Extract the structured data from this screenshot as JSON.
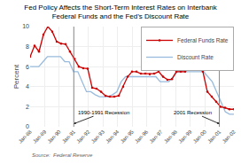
{
  "chart_data": {
    "type": "line",
    "title": "Fed Policy Affects the Short-Term Interest Rates on Interbank",
    "subtitle": "Federal Funds and the Fed’s Discount Rate",
    "ylabel": "Percent",
    "source": "Source:  Federal Reserve",
    "xlim": [
      0,
      14
    ],
    "xticks": [
      {
        "value": 0,
        "label": "Jan-88"
      },
      {
        "value": 1,
        "label": "Jan-89"
      },
      {
        "value": 2,
        "label": "Jan-90"
      },
      {
        "value": 3,
        "label": "Jan-91"
      },
      {
        "value": 4,
        "label": "Jan-92"
      },
      {
        "value": 5,
        "label": "Jan-93"
      },
      {
        "value": 6,
        "label": "Jan-94"
      },
      {
        "value": 7,
        "label": "Jan-95"
      },
      {
        "value": 8,
        "label": "Jan-96"
      },
      {
        "value": 9,
        "label": "Jan-97"
      },
      {
        "value": 10,
        "label": "Jan-98"
      },
      {
        "value": 11,
        "label": "Jan-99"
      },
      {
        "value": 12,
        "label": "Jan-00"
      },
      {
        "value": 13,
        "label": "Jan-01"
      },
      {
        "value": 14,
        "label": "Jan-02"
      }
    ],
    "ylim": [
      0,
      10
    ],
    "yticks": [
      0,
      2,
      4,
      6,
      8,
      10
    ],
    "grid": true,
    "legend": "upper right",
    "annotations": [
      {
        "text": "1990-1991 Recession",
        "x": 3.0
      },
      {
        "text": "2001 Recession",
        "x": 13.0
      }
    ],
    "series": [
      {
        "name": "Federal Funds Rate",
        "color": "#cc0000",
        "marker": "circle",
        "x": [
          0,
          0.3043,
          0.6087,
          0.913,
          1.2174,
          1.5217,
          1.8261,
          2.1304,
          2.4348,
          2.7391,
          3.0435,
          3.3478,
          3.6522,
          3.9565,
          4.2609,
          4.5652,
          4.8696,
          5.1739,
          5.4783,
          5.7826,
          6.087,
          6.3913,
          6.6957,
          7,
          7.3043,
          7.6087,
          7.913,
          8.2174,
          8.5217,
          8.8261,
          9.1304,
          9.4348,
          9.7391,
          10.0435,
          10.3478,
          10.6522,
          10.9565,
          11.2609,
          11.5652,
          11.8696,
          12.1739,
          12.4783,
          12.7826,
          13.087,
          13.3913,
          13.6957,
          14
        ],
        "values": [
          7.0,
          8.1,
          7.5,
          9.2,
          10.0,
          9.5,
          8.5,
          8.3,
          8.25,
          7.5,
          6.8,
          6.0,
          5.85,
          5.8,
          3.9,
          3.8,
          3.5,
          3.1,
          3.0,
          3.0,
          3.1,
          4.0,
          5.0,
          5.5,
          5.5,
          5.3,
          5.3,
          5.25,
          5.3,
          5.5,
          5.0,
          4.7,
          4.75,
          5.5,
          5.5,
          5.5,
          6.0,
          6.0,
          5.9,
          5.5,
          3.5,
          3.0,
          2.5,
          2.0,
          1.9,
          1.75,
          1.75
        ]
      },
      {
        "name": "Discount Rate",
        "color": "#99bbdd",
        "x": [
          0,
          0.2979,
          0.5957,
          0.8936,
          1.1915,
          1.4894,
          1.7872,
          2.0851,
          2.383,
          2.6809,
          2.9787,
          3.2766,
          3.5745,
          3.8723,
          4.1702,
          4.4681,
          4.766,
          5.0638,
          5.3617,
          5.6596,
          5.9574,
          6.2553,
          6.5532,
          6.8511,
          7.1489,
          7.4468,
          7.7447,
          8.0426,
          8.3404,
          8.6383,
          8.9362,
          9.234,
          9.5319,
          9.8298,
          10.1277,
          10.4255,
          10.7234,
          11.0213,
          11.3191,
          11.617,
          11.9149,
          12.2128,
          12.5106,
          12.8085,
          13.1064,
          13.4043,
          13.7021,
          14
        ],
        "values": [
          6.0,
          6.0,
          6.0,
          6.5,
          7.0,
          7.0,
          7.0,
          7.0,
          6.5,
          6.5,
          5.5,
          5.5,
          4.5,
          3.5,
          3.5,
          3.2,
          3.0,
          3.0,
          3.0,
          3.2,
          3.5,
          4.5,
          5.0,
          5.0,
          5.0,
          5.0,
          5.0,
          5.0,
          5.0,
          5.0,
          4.5,
          4.5,
          4.5,
          5.0,
          5.5,
          5.5,
          5.5,
          5.5,
          5.5,
          5.5,
          5.5,
          5.0,
          4.5,
          3.5,
          2.5,
          1.5,
          1.25,
          1.25
        ]
      }
    ]
  }
}
